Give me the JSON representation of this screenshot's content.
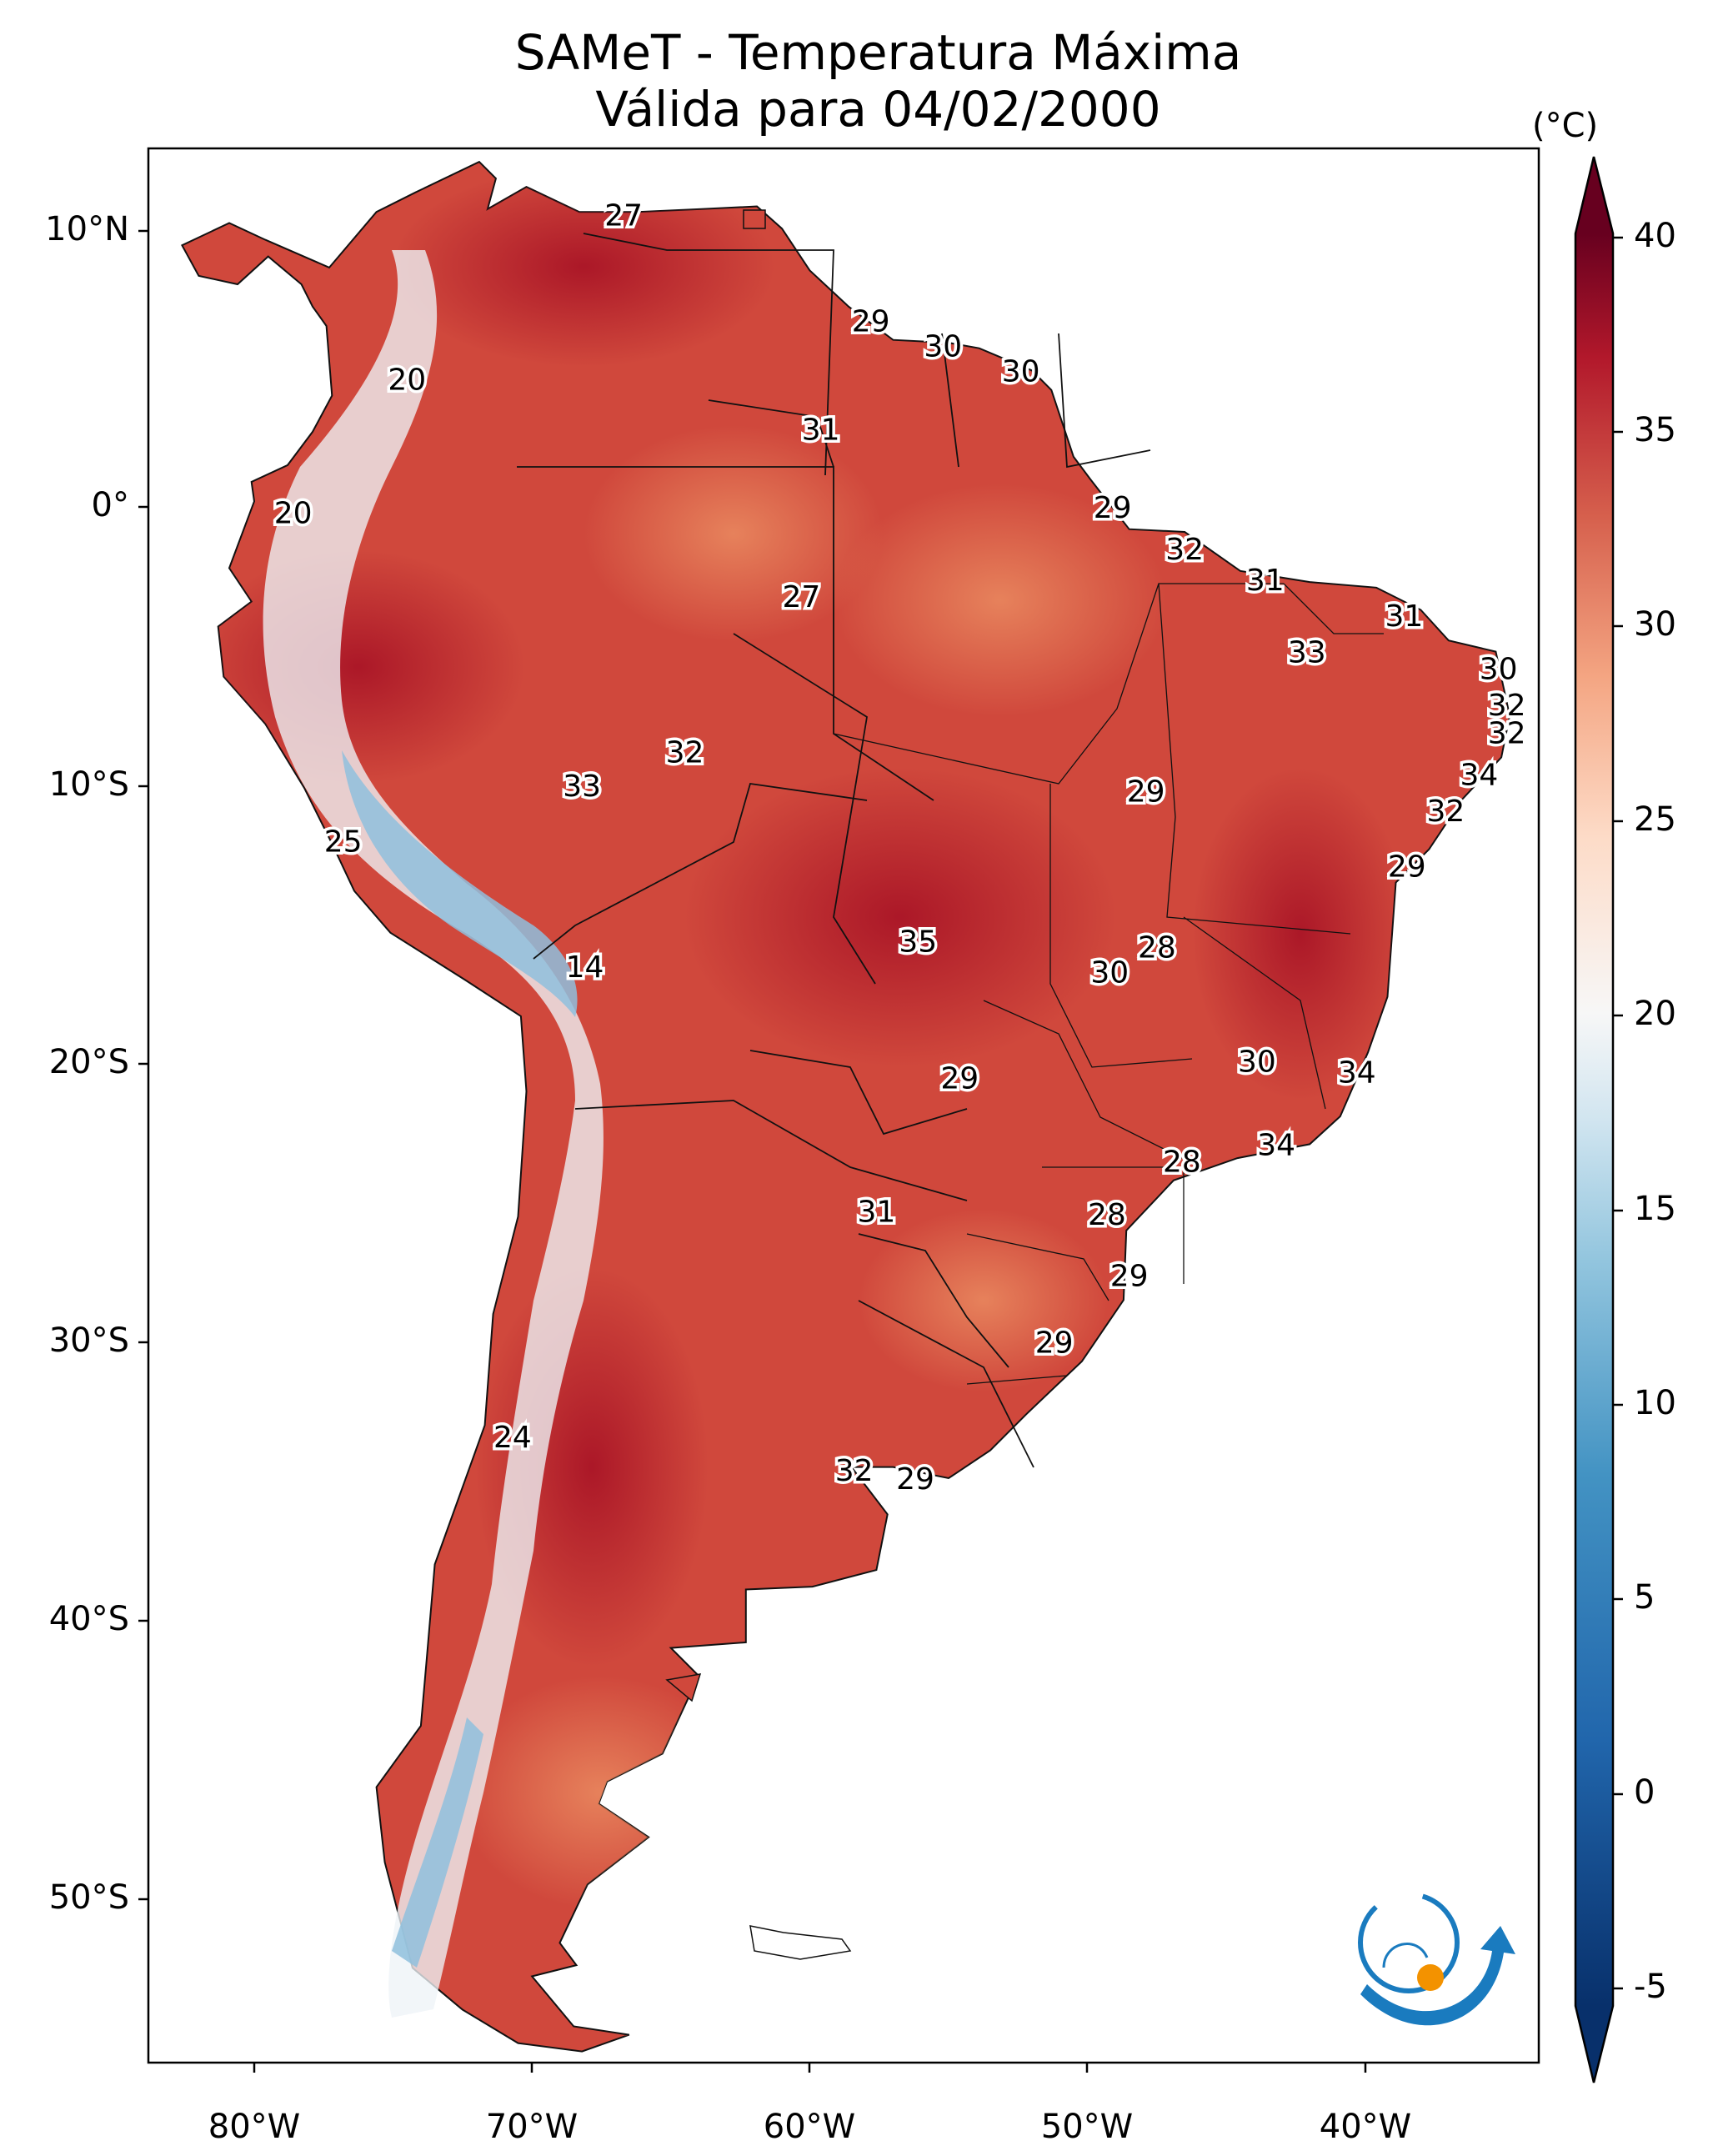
{
  "title": {
    "line1": "SAMeT - Temperatura Máxima",
    "line2": "Válida para 04/02/2000"
  },
  "colorbar": {
    "unit": "(°C)",
    "ticks": [
      "40",
      "35",
      "30",
      "25",
      "20",
      "15",
      "10",
      "5",
      "0",
      "-5"
    ],
    "range": [
      -5,
      40
    ]
  },
  "axes": {
    "lat_labels": [
      "10°N",
      "0°",
      "10°S",
      "20°S",
      "30°S",
      "40°S",
      "50°S"
    ],
    "lon_labels": [
      "80°W",
      "70°W",
      "60°W",
      "50°W",
      "40°W"
    ]
  },
  "map_data": {
    "region": "South America",
    "variable": "Temperatura Máxima",
    "point_labels": [
      {
        "value": "27",
        "lon": -66.7,
        "lat": 10.5
      },
      {
        "value": "20",
        "lon": -74.5,
        "lat": 4.6
      },
      {
        "value": "29",
        "lon": -57.8,
        "lat": 6.7
      },
      {
        "value": "30",
        "lon": -55.2,
        "lat": 5.8
      },
      {
        "value": "30",
        "lon": -52.4,
        "lat": 4.9
      },
      {
        "value": "31",
        "lon": -59.6,
        "lat": 2.8
      },
      {
        "value": "20",
        "lon": -78.6,
        "lat": -0.2
      },
      {
        "value": "29",
        "lon": -49.1,
        "lat": 0.0
      },
      {
        "value": "32",
        "lon": -46.5,
        "lat": -1.5
      },
      {
        "value": "31",
        "lon": -43.6,
        "lat": -2.6
      },
      {
        "value": "31",
        "lon": -38.6,
        "lat": -3.9
      },
      {
        "value": "27",
        "lon": -60.3,
        "lat": -3.2
      },
      {
        "value": "33",
        "lon": -42.1,
        "lat": -5.2
      },
      {
        "value": "30",
        "lon": -35.2,
        "lat": -5.8
      },
      {
        "value": "32",
        "lon": -34.9,
        "lat": -7.1
      },
      {
        "value": "32",
        "lon": -34.9,
        "lat": -8.1
      },
      {
        "value": "32",
        "lon": -64.5,
        "lat": -8.8
      },
      {
        "value": "33",
        "lon": -68.2,
        "lat": -10.0
      },
      {
        "value": "29",
        "lon": -47.9,
        "lat": -10.2
      },
      {
        "value": "34",
        "lon": -35.9,
        "lat": -9.6
      },
      {
        "value": "32",
        "lon": -37.1,
        "lat": -10.9
      },
      {
        "value": "25",
        "lon": -76.8,
        "lat": -12.0
      },
      {
        "value": "29",
        "lon": -38.5,
        "lat": -12.9
      },
      {
        "value": "14",
        "lon": -68.1,
        "lat": -16.5
      },
      {
        "value": "35",
        "lon": -56.1,
        "lat": -15.6
      },
      {
        "value": "28",
        "lon": -47.5,
        "lat": -15.8
      },
      {
        "value": "30",
        "lon": -49.2,
        "lat": -16.7
      },
      {
        "value": "30",
        "lon": -43.9,
        "lat": -19.9
      },
      {
        "value": "34",
        "lon": -40.3,
        "lat": -20.3
      },
      {
        "value": "29",
        "lon": -54.6,
        "lat": -20.5
      },
      {
        "value": "34",
        "lon": -43.2,
        "lat": -22.9
      },
      {
        "value": "28",
        "lon": -46.6,
        "lat": -23.5
      },
      {
        "value": "31",
        "lon": -57.6,
        "lat": -25.3
      },
      {
        "value": "28",
        "lon": -49.3,
        "lat": -25.4
      },
      {
        "value": "29",
        "lon": -48.5,
        "lat": -27.6
      },
      {
        "value": "29",
        "lon": -51.2,
        "lat": -30.0
      },
      {
        "value": "24",
        "lon": -70.7,
        "lat": -33.4
      },
      {
        "value": "32",
        "lon": -58.4,
        "lat": -34.6
      },
      {
        "value": "29",
        "lon": -56.2,
        "lat": -34.9
      }
    ]
  }
}
